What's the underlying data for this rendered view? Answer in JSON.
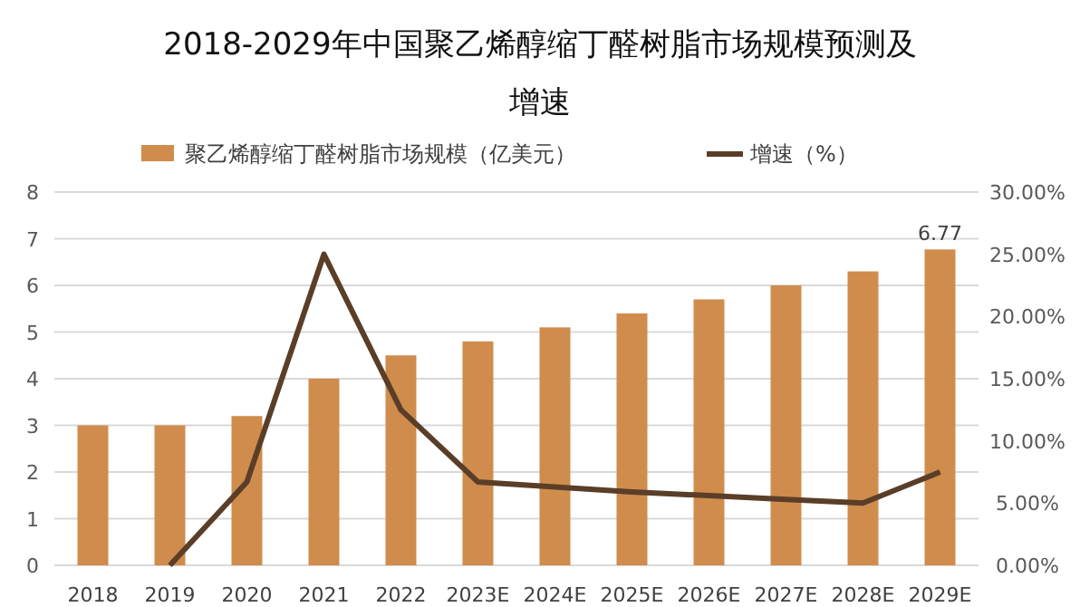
{
  "chart_data": {
    "type": "bar",
    "title": "2018-2029年中国聚乙烯醇缩丁醛树脂市场规模预测及增速",
    "categories": [
      "2018",
      "2019",
      "2020",
      "2021",
      "2022",
      "2023E",
      "2024E",
      "2025E",
      "2026E",
      "2027E",
      "2028E",
      "2029E"
    ],
    "series": [
      {
        "name": "聚乙烯醇缩丁醛树脂市场规模（亿美元）",
        "color": "#d08c4c",
        "values": [
          3.0,
          3.0,
          3.2,
          4.0,
          4.5,
          4.8,
          5.1,
          5.4,
          5.7,
          6.0,
          6.3,
          6.77
        ],
        "value_labels": [
          null,
          null,
          null,
          null,
          null,
          null,
          null,
          null,
          null,
          null,
          null,
          "6.77"
        ]
      },
      {
        "name": "增速（%）",
        "type": "line",
        "axis": "y2",
        "color": "#5a3e28",
        "values": [
          null,
          0,
          6.7,
          25,
          12.5,
          6.7,
          6.3,
          5.9,
          5.6,
          5.3,
          5.0,
          7.5
        ]
      }
    ],
    "ylim": [
      0,
      8
    ],
    "yticks": [
      0,
      1,
      2,
      3,
      4,
      5,
      6,
      7,
      8
    ],
    "y2lim": [
      0,
      30
    ],
    "y2ticks": [
      {
        "value": 0,
        "label": "0.00%"
      },
      {
        "value": 5,
        "label": "5.00%"
      },
      {
        "value": 10,
        "label": "10.00%"
      },
      {
        "value": 15,
        "label": "15.00%"
      },
      {
        "value": 20,
        "label": "20.00%"
      },
      {
        "value": 25,
        "label": "25.00%"
      },
      {
        "value": 30,
        "label": "30.00%"
      }
    ],
    "grid": "y",
    "legend": "top",
    "marker": "none",
    "line_style": "solid"
  }
}
